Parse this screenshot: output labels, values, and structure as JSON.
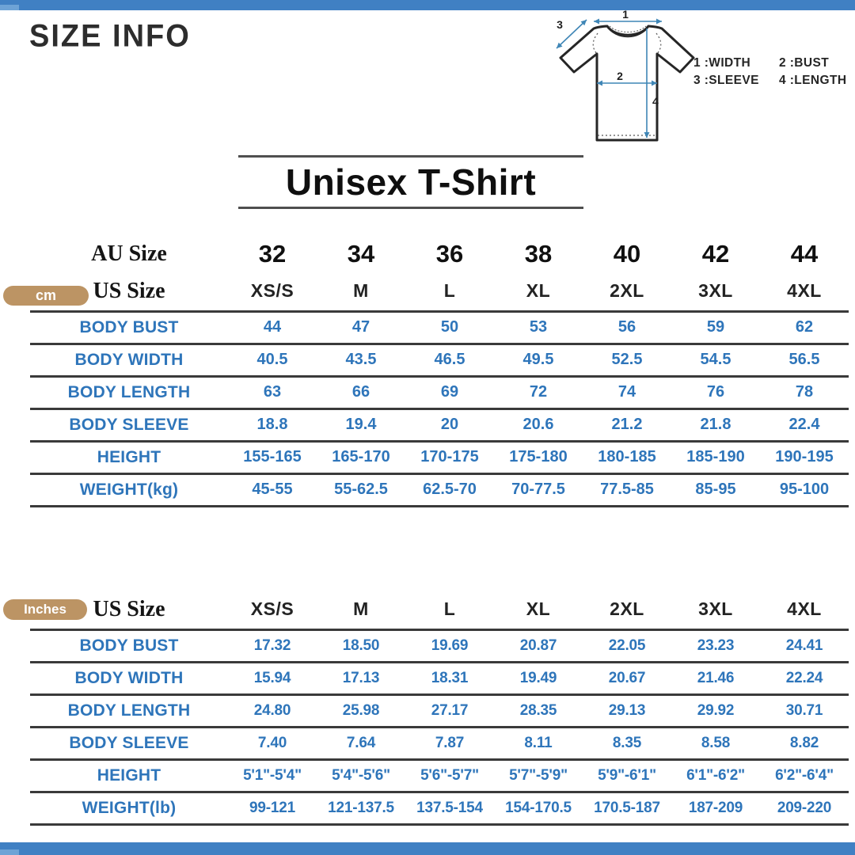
{
  "header": {
    "title": "SIZE INFO",
    "product_title": "Unisex T-Shirt"
  },
  "colors": {
    "accent_blue_bar": "#4080c3",
    "data_text_blue": "#2e75ba",
    "badge_tan": "#bc9464",
    "arrow_teal": "#3f86b6"
  },
  "diagram": {
    "markers": {
      "width": "1",
      "bust": "2",
      "sleeve": "3",
      "length": "4"
    },
    "legend_items": [
      "1 :WIDTH",
      "2 :BUST",
      "3 :SLEEVE",
      "4 :LENGTH"
    ]
  },
  "cm_table": {
    "unit_badge": "cm",
    "au_size_label": "AU Size",
    "us_size_label": "US Size",
    "au_sizes": [
      "32",
      "34",
      "36",
      "38",
      "40",
      "42",
      "44"
    ],
    "us_sizes": [
      "XS/S",
      "M",
      "L",
      "XL",
      "2XL",
      "3XL",
      "4XL"
    ],
    "rows": [
      {
        "label": "BODY BUST",
        "values": [
          "44",
          "47",
          "50",
          "53",
          "56",
          "59",
          "62"
        ]
      },
      {
        "label": "BODY WIDTH",
        "values": [
          "40.5",
          "43.5",
          "46.5",
          "49.5",
          "52.5",
          "54.5",
          "56.5"
        ]
      },
      {
        "label": "BODY LENGTH",
        "values": [
          "63",
          "66",
          "69",
          "72",
          "74",
          "76",
          "78"
        ]
      },
      {
        "label": "BODY SLEEVE",
        "values": [
          "18.8",
          "19.4",
          "20",
          "20.6",
          "21.2",
          "21.8",
          "22.4"
        ]
      },
      {
        "label": "HEIGHT",
        "values": [
          "155-165",
          "165-170",
          "170-175",
          "175-180",
          "180-185",
          "185-190",
          "190-195"
        ]
      },
      {
        "label": "WEIGHT(kg)",
        "values": [
          "45-55",
          "55-62.5",
          "62.5-70",
          "70-77.5",
          "77.5-85",
          "85-95",
          "95-100"
        ]
      }
    ]
  },
  "inches_table": {
    "unit_badge": "Inches",
    "us_size_label": "US Size",
    "us_sizes": [
      "XS/S",
      "M",
      "L",
      "XL",
      "2XL",
      "3XL",
      "4XL"
    ],
    "rows": [
      {
        "label": "BODY BUST",
        "values": [
          "17.32",
          "18.50",
          "19.69",
          "20.87",
          "22.05",
          "23.23",
          "24.41"
        ]
      },
      {
        "label": "BODY WIDTH",
        "values": [
          "15.94",
          "17.13",
          "18.31",
          "19.49",
          "20.67",
          "21.46",
          "22.24"
        ]
      },
      {
        "label": "BODY LENGTH",
        "values": [
          "24.80",
          "25.98",
          "27.17",
          "28.35",
          "29.13",
          "29.92",
          "30.71"
        ]
      },
      {
        "label": "BODY SLEEVE",
        "values": [
          "7.40",
          "7.64",
          "7.87",
          "8.11",
          "8.35",
          "8.58",
          "8.82"
        ]
      },
      {
        "label": "HEIGHT",
        "values": [
          "5'1\"-5'4\"",
          "5'4\"-5'6\"",
          "5'6\"-5'7\"",
          "5'7\"-5'9\"",
          "5'9\"-6'1\"",
          "6'1\"-6'2\"",
          "6'2\"-6'4\""
        ]
      },
      {
        "label": "WEIGHT(lb)",
        "values": [
          "99-121",
          "121-137.5",
          "137.5-154",
          "154-170.5",
          "170.5-187",
          "187-209",
          "209-220"
        ]
      }
    ]
  }
}
